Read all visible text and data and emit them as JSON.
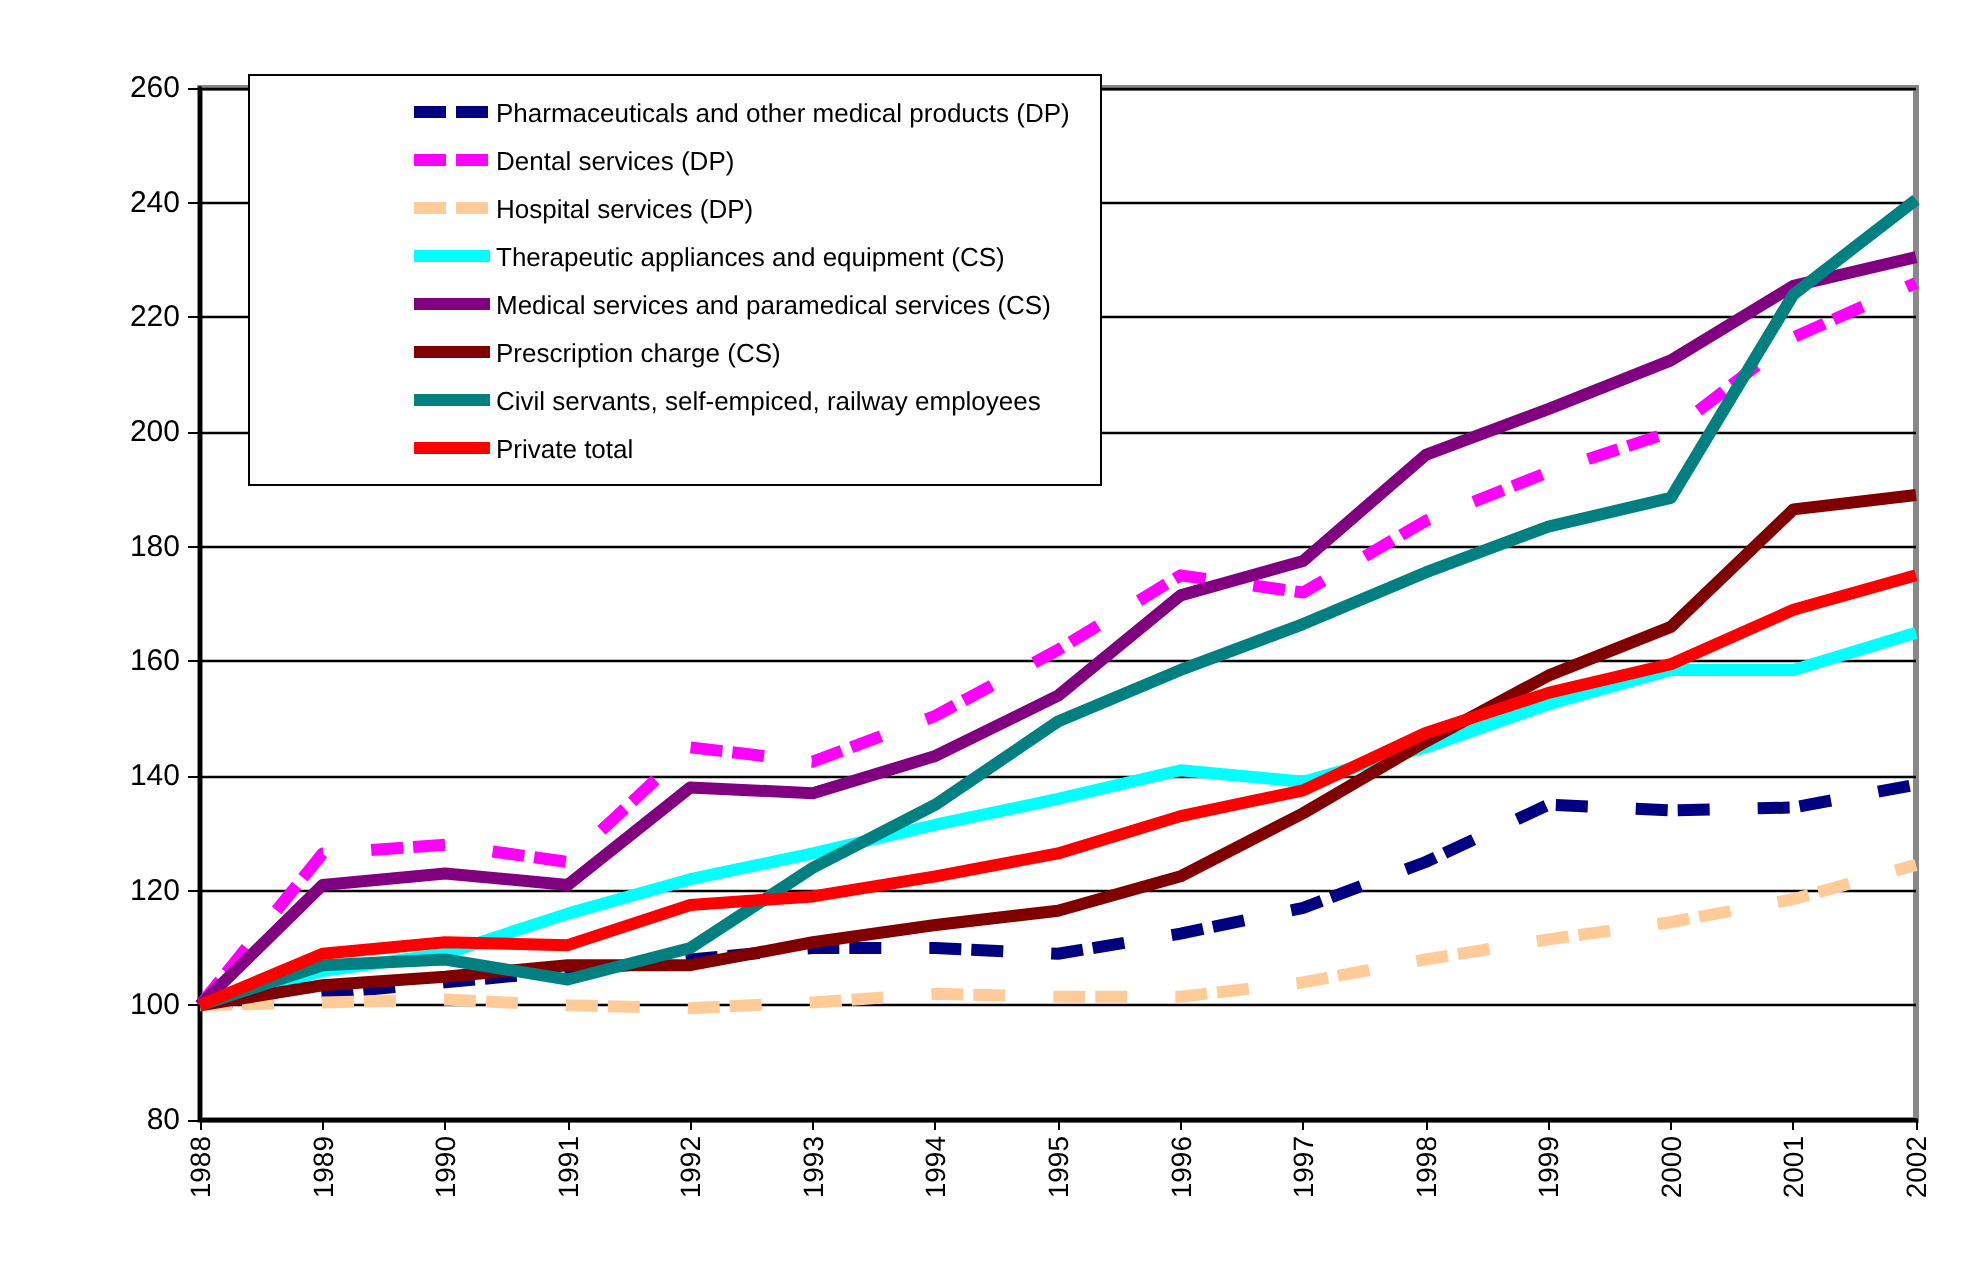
{
  "chart_data": {
    "type": "line",
    "categories": [
      "1988",
      "1989",
      "1990",
      "1991",
      "1992",
      "1993",
      "1994",
      "1995",
      "1996",
      "1997",
      "1998",
      "1999",
      "2000",
      "2001",
      "2002"
    ],
    "ylim": [
      80,
      260
    ],
    "yticks": [
      80,
      100,
      120,
      140,
      160,
      180,
      200,
      220,
      240,
      260
    ],
    "grid": "y",
    "legend": "top left",
    "marker": "none",
    "series": [
      {
        "name": "Pharmaceuticals and other medical products (DP)",
        "color": "#000080",
        "line_style": "dashed",
        "values": [
          100,
          102,
          104,
          106,
          108,
          110,
          110,
          109,
          112.5,
          117,
          125,
          135,
          134,
          134.5,
          138.5
        ]
      },
      {
        "name": "Dental services (DP)",
        "color": "#ff00ff",
        "line_style": "dashed",
        "values": [
          100,
          126.5,
          128,
          125,
          145,
          142.5,
          150.5,
          162,
          175,
          172,
          184.5,
          193,
          200,
          216.5,
          226
        ]
      },
      {
        "name": "Hospital services (DP)",
        "color": "#ffcc99",
        "line_style": "dashed",
        "values": [
          100,
          100.5,
          101,
          100,
          99.5,
          100.5,
          102,
          101.5,
          101.5,
          104,
          108,
          111.5,
          114.5,
          118.5,
          124.5
        ]
      },
      {
        "name": "Therapeutic appliances and equipment (CS)",
        "color": "#00ffff",
        "line_style": "solid",
        "values": [
          100,
          106,
          109,
          116,
          122,
          126.5,
          131.5,
          136,
          141,
          139,
          145,
          152.5,
          158.5,
          158.5,
          165
        ]
      },
      {
        "name": "Medical services and paramedical services (CS)",
        "color": "#800080",
        "line_style": "solid",
        "values": [
          100,
          121,
          123,
          121,
          138,
          137,
          143.5,
          154,
          171.5,
          177.5,
          196,
          204,
          212.5,
          225.5,
          230.5
        ]
      },
      {
        "name": "Prescription charge (CS)",
        "color": "#800000",
        "line_style": "solid",
        "values": [
          100,
          103.5,
          105,
          107,
          107,
          111,
          114,
          116.5,
          122.5,
          133.5,
          146,
          157.5,
          166,
          186.5,
          189
        ]
      },
      {
        "name": "Civil servants, self-empiced, railway employees",
        "color": "#008080",
        "line_style": "solid",
        "values": [
          100,
          107,
          108,
          104.5,
          110,
          124,
          135,
          149.5,
          158.5,
          166.5,
          175.5,
          183.5,
          188.5,
          224,
          240.5
        ]
      },
      {
        "name": "Private total",
        "color": "#ff0000",
        "line_style": "solid",
        "values": [
          100,
          109,
          111,
          110.5,
          117.5,
          119,
          122.5,
          126.5,
          133,
          137.5,
          147.5,
          154.5,
          159.5,
          169,
          175
        ]
      }
    ]
  }
}
